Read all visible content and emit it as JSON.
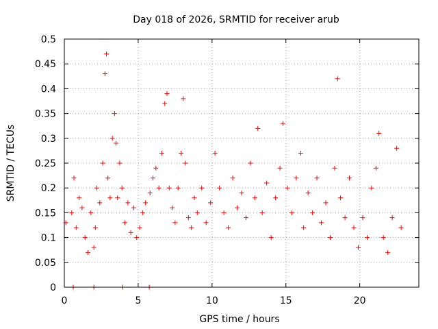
{
  "chart_data": {
    "type": "scatter",
    "title": "Day 018 of 2026, SRMTID for receiver arub",
    "xlabel": "GPS time / hours",
    "ylabel": "SRMTID / TECUs",
    "xlim": [
      0,
      24
    ],
    "ylim": [
      0,
      0.5
    ],
    "x_ticks": [
      0,
      5,
      10,
      15,
      20
    ],
    "x_tick_labels": [
      "0",
      "5",
      "10",
      "15",
      "20"
    ],
    "y_ticks": [
      0,
      0.05,
      0.1,
      0.15,
      0.2,
      0.25,
      0.3,
      0.35,
      0.4,
      0.45,
      0.5
    ],
    "y_tick_labels": [
      "0",
      "0.05",
      "0.1",
      "0.15",
      "0.2",
      "0.25",
      "0.3",
      "0.35",
      "0.4",
      "0.45",
      "0.5"
    ],
    "grid": true,
    "marker": "+",
    "marker_color": "#ff0000",
    "series": [
      {
        "name": "SRMTID",
        "x": [
          0.1,
          0.5,
          0.65,
          0.8,
          1.0,
          1.2,
          1.4,
          1.6,
          1.8,
          2.0,
          2.1,
          2.2,
          2.4,
          2.6,
          2.75,
          2.85,
          2.95,
          3.1,
          3.25,
          3.4,
          3.5,
          3.6,
          3.75,
          3.9,
          4.1,
          4.3,
          4.5,
          4.7,
          4.9,
          5.1,
          5.3,
          5.5,
          5.8,
          6.0,
          6.2,
          6.4,
          6.6,
          6.8,
          6.95,
          7.1,
          7.3,
          7.5,
          7.7,
          7.9,
          8.05,
          8.2,
          8.4,
          8.6,
          8.8,
          9.0,
          9.3,
          9.6,
          9.9,
          10.2,
          10.5,
          10.8,
          11.1,
          11.4,
          11.7,
          12.0,
          12.3,
          12.6,
          12.9,
          13.1,
          13.4,
          13.7,
          14.0,
          14.3,
          14.6,
          14.8,
          15.1,
          15.4,
          15.7,
          16.0,
          16.2,
          16.5,
          16.8,
          17.1,
          17.4,
          17.7,
          18.0,
          18.3,
          18.5,
          18.7,
          19.0,
          19.3,
          19.6,
          19.9,
          20.2,
          20.5,
          20.8,
          21.1,
          21.3,
          21.6,
          21.9,
          22.2,
          22.5,
          22.8,
          0.6,
          2.0,
          3.95,
          5.75
        ],
        "y": [
          0.13,
          0.15,
          0.22,
          0.12,
          0.18,
          0.16,
          0.1,
          0.07,
          0.15,
          0.08,
          0.12,
          0.2,
          0.17,
          0.25,
          0.43,
          0.47,
          0.22,
          0.18,
          0.3,
          0.35,
          0.29,
          0.18,
          0.25,
          0.2,
          0.13,
          0.17,
          0.11,
          0.16,
          0.1,
          0.12,
          0.15,
          0.17,
          0.19,
          0.22,
          0.24,
          0.2,
          0.27,
          0.37,
          0.39,
          0.2,
          0.16,
          0.13,
          0.2,
          0.27,
          0.38,
          0.25,
          0.14,
          0.12,
          0.18,
          0.15,
          0.2,
          0.13,
          0.17,
          0.27,
          0.2,
          0.15,
          0.12,
          0.22,
          0.16,
          0.19,
          0.14,
          0.25,
          0.18,
          0.32,
          0.15,
          0.21,
          0.1,
          0.18,
          0.24,
          0.33,
          0.2,
          0.15,
          0.22,
          0.27,
          0.12,
          0.19,
          0.15,
          0.22,
          0.13,
          0.17,
          0.1,
          0.24,
          0.42,
          0.18,
          0.14,
          0.22,
          0.12,
          0.08,
          0.14,
          0.1,
          0.2,
          0.24,
          0.31,
          0.1,
          0.07,
          0.14,
          0.28,
          0.12,
          0.0,
          0.0,
          0.0,
          0.0
        ]
      }
    ]
  }
}
